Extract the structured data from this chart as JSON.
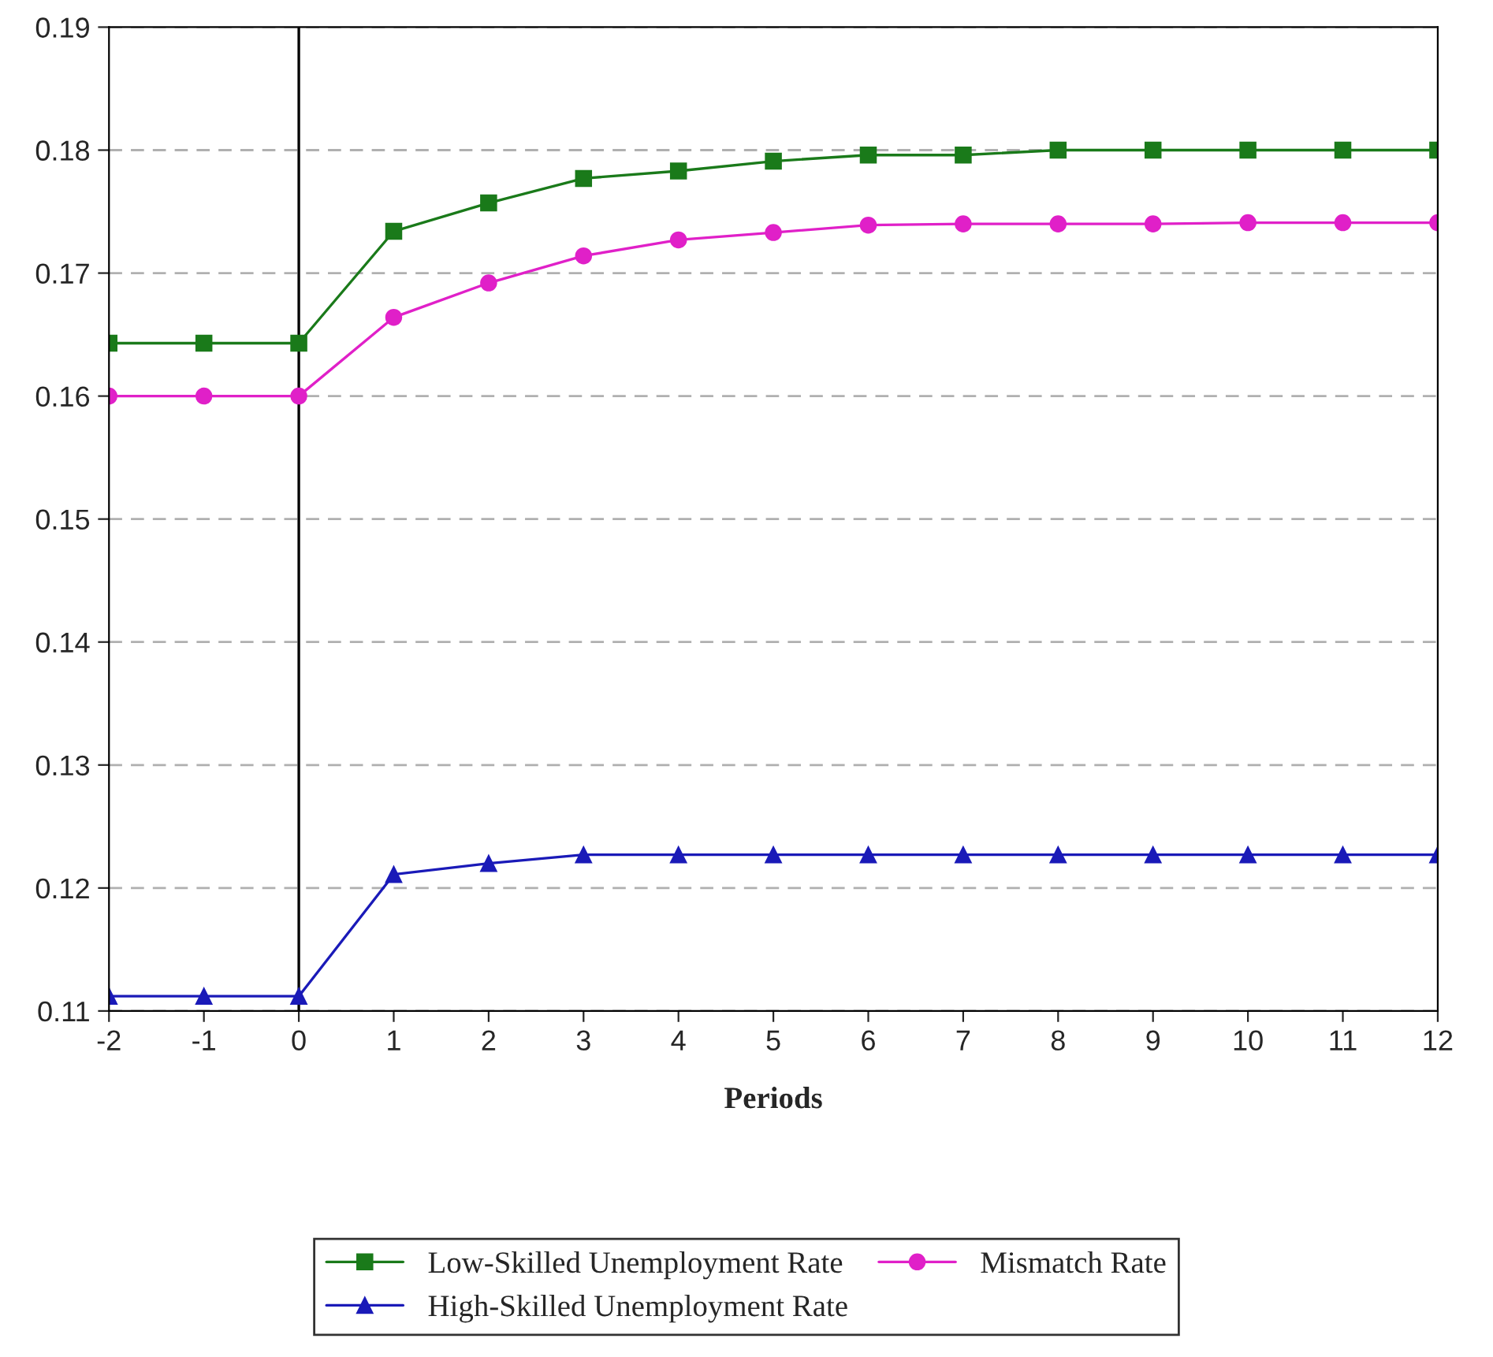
{
  "chart_data": {
    "type": "line",
    "xlabel": "Periods",
    "x": [
      -2,
      -1,
      0,
      1,
      2,
      3,
      4,
      5,
      6,
      7,
      8,
      9,
      10,
      11,
      12
    ],
    "series": [
      {
        "name": "Low-Skilled Unemployment Rate",
        "color": "#1a7a1a",
        "marker": "square",
        "values": [
          0.1643,
          0.1643,
          0.1643,
          0.1734,
          0.1757,
          0.1777,
          0.1783,
          0.1791,
          0.1796,
          0.1796,
          0.18,
          0.18,
          0.18,
          0.18,
          0.18
        ]
      },
      {
        "name": "High-Skilled Unemployment Rate",
        "color": "#1a1ab8",
        "marker": "triangle",
        "values": [
          0.1112,
          0.1112,
          0.1112,
          0.1211,
          0.122,
          0.1227,
          0.1227,
          0.1227,
          0.1227,
          0.1227,
          0.1227,
          0.1227,
          0.1227,
          0.1227,
          0.1227
        ]
      },
      {
        "name": "Mismatch Rate",
        "color": "#e020c8",
        "marker": "circle",
        "values": [
          0.16,
          0.16,
          0.16,
          0.1664,
          0.1692,
          0.1714,
          0.1727,
          0.1733,
          0.1739,
          0.174,
          0.174,
          0.174,
          0.1741,
          0.1741,
          0.1741
        ]
      }
    ],
    "xlim": [
      -2,
      12
    ],
    "xticks": [
      -2,
      -1,
      0,
      1,
      2,
      3,
      4,
      5,
      6,
      7,
      8,
      9,
      10,
      11,
      12
    ],
    "ylim": [
      0.11,
      0.19
    ],
    "yticks": [
      0.11,
      0.12,
      0.13,
      0.14,
      0.15,
      0.16,
      0.17,
      0.18,
      0.19
    ],
    "ref_lines": [
      {
        "axis": "x",
        "value": 0,
        "color": "#000000"
      }
    ],
    "grid": "y",
    "legend": "bottom",
    "line_style": "solid"
  }
}
